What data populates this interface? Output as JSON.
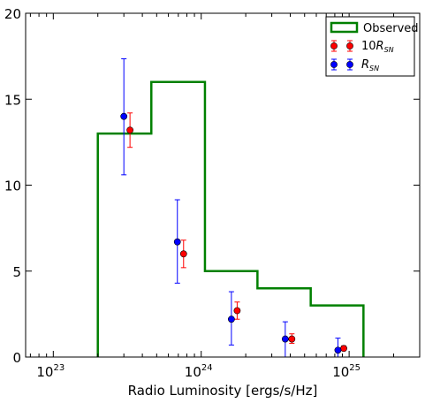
{
  "chart_data": {
    "type": "line",
    "title": "",
    "xlabel": "Radio Luminosity [ergs/s/Hz]",
    "ylabel": "",
    "xscale": "log",
    "xlim": [
      6.5e+22,
      3e+25
    ],
    "ylim": [
      0,
      20
    ],
    "x_ticks": [
      {
        "value": 1e+23,
        "base": "10",
        "exp": "23"
      },
      {
        "value": 1e+24,
        "base": "10",
        "exp": "24"
      },
      {
        "value": 1e+25,
        "base": "10",
        "exp": "25"
      }
    ],
    "y_ticks": [
      {
        "value": 0,
        "label": "0"
      },
      {
        "value": 5,
        "label": "5"
      },
      {
        "value": 10,
        "label": "10"
      },
      {
        "value": 15,
        "label": "15"
      },
      {
        "value": 20,
        "label": "20"
      }
    ],
    "legend_position": "top-right",
    "series": [
      {
        "name": "Observed",
        "kind": "step",
        "color": "#008000",
        "edges": [
          2e+23,
          4.6e+23,
          1.06e+24,
          2.4e+24,
          5.5e+24,
          1.25e+25
        ],
        "values": [
          13,
          16,
          5,
          4,
          3
        ]
      },
      {
        "name": "10R_SN",
        "legend_label": {
          "prefix": "10",
          "main": "R",
          "sub": "SN"
        },
        "kind": "errorbar",
        "color": "#ff0000",
        "points": [
          {
            "x": 3.3e+23,
            "y": 13.2,
            "lo": 12.2,
            "hi": 14.2
          },
          {
            "x": 7.6e+23,
            "y": 6.0,
            "lo": 5.2,
            "hi": 6.8
          },
          {
            "x": 1.75e+24,
            "y": 2.7,
            "lo": 2.2,
            "hi": 3.2
          },
          {
            "x": 4.1e+24,
            "y": 1.05,
            "lo": 0.8,
            "hi": 1.35
          },
          {
            "x": 9.2e+24,
            "y": 0.5,
            "lo": 0.4,
            "hi": 0.65
          }
        ]
      },
      {
        "name": "R_SN",
        "legend_label": {
          "prefix": "",
          "main": "R",
          "sub": "SN"
        },
        "kind": "errorbar",
        "color": "#0000ff",
        "points": [
          {
            "x": 3e+23,
            "y": 14.0,
            "lo": 10.6,
            "hi": 17.35
          },
          {
            "x": 6.9e+23,
            "y": 6.7,
            "lo": 4.3,
            "hi": 9.15
          },
          {
            "x": 1.6e+24,
            "y": 2.2,
            "lo": 0.7,
            "hi": 3.8
          },
          {
            "x": 3.7e+24,
            "y": 1.05,
            "lo": 0.0,
            "hi": 2.05
          },
          {
            "x": 8.4e+24,
            "y": 0.4,
            "lo": 0.0,
            "hi": 1.1
          }
        ]
      }
    ]
  }
}
